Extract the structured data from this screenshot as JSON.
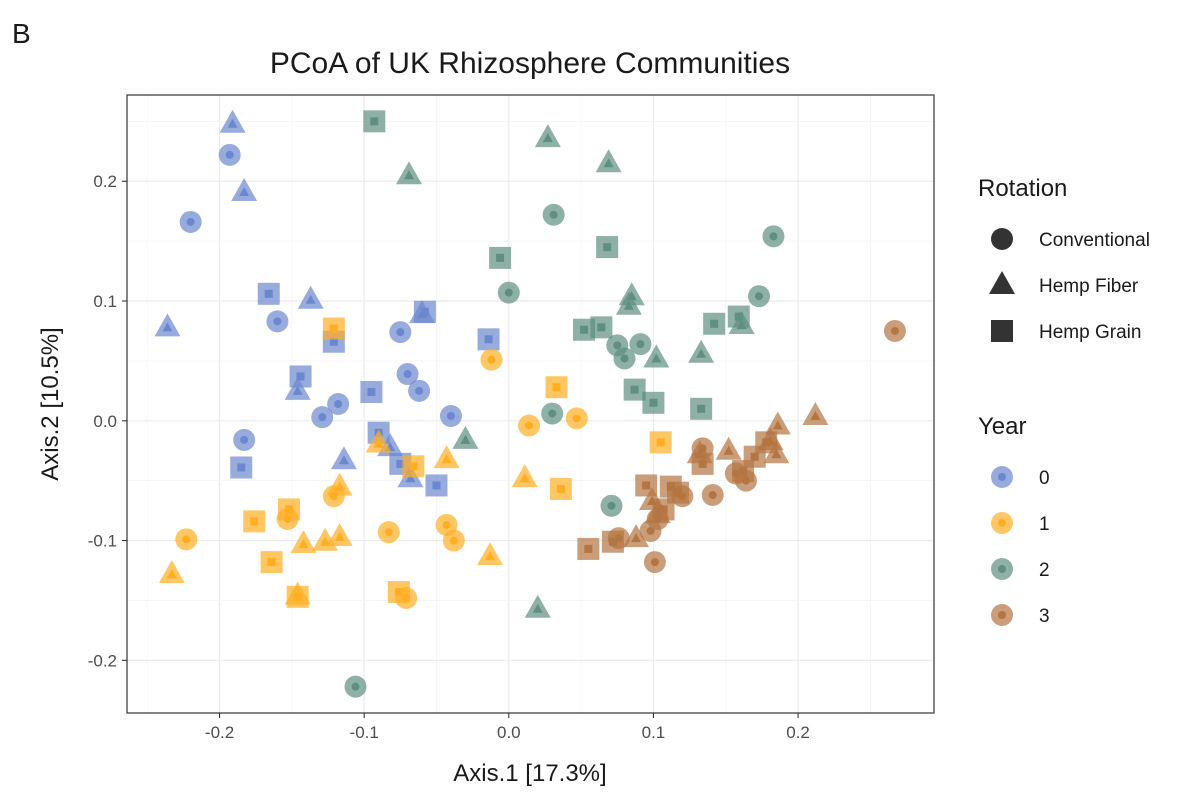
{
  "panel_tag": "B",
  "colors": {
    "0": "#6b87cf",
    "1": "#ffae22",
    "2": "#5e8f80",
    "3": "#b37541"
  },
  "legend": {
    "shape_title": "Rotation",
    "shape_items": [
      {
        "label": "Conventional",
        "shape": "circle"
      },
      {
        "label": "Hemp Fiber",
        "shape": "triangle"
      },
      {
        "label": "Hemp Grain",
        "shape": "square"
      }
    ],
    "color_title": "Year",
    "color_items": [
      {
        "label": "0",
        "year": "0"
      },
      {
        "label": "1",
        "year": "1"
      },
      {
        "label": "2",
        "year": "2"
      },
      {
        "label": "3",
        "year": "3"
      }
    ]
  },
  "chart_data": {
    "type": "scatter",
    "title": "PCoA of UK Rhizosphere Communities",
    "xlabel": "Axis.1   [17.3%]",
    "ylabel": "Axis.2   [10.5%]",
    "xlim": [
      -0.264,
      0.294
    ],
    "ylim": [
      -0.244,
      0.272
    ],
    "xticks": [
      -0.2,
      -0.1,
      0.0,
      0.1,
      0.2
    ],
    "xtick_labels": [
      "-0.2",
      "-0.1",
      "0.0",
      "0.1",
      "0.2"
    ],
    "yticks": [
      -0.2,
      -0.1,
      0.0,
      0.1,
      0.2
    ],
    "ytick_labels": [
      "-0.2",
      "-0.1",
      "0.0",
      "0.1",
      "0.2"
    ],
    "grid": true,
    "legend_position": "right",
    "points": [
      {
        "x": -0.193,
        "y": 0.222,
        "shape": "circle",
        "year": "0"
      },
      {
        "x": -0.22,
        "y": 0.166,
        "shape": "circle",
        "year": "0"
      },
      {
        "x": -0.16,
        "y": 0.083,
        "shape": "circle",
        "year": "0"
      },
      {
        "x": -0.075,
        "y": 0.074,
        "shape": "circle",
        "year": "0"
      },
      {
        "x": -0.07,
        "y": 0.039,
        "shape": "circle",
        "year": "0"
      },
      {
        "x": -0.062,
        "y": 0.025,
        "shape": "circle",
        "year": "0"
      },
      {
        "x": -0.04,
        "y": 0.004,
        "shape": "circle",
        "year": "0"
      },
      {
        "x": -0.118,
        "y": 0.014,
        "shape": "circle",
        "year": "0"
      },
      {
        "x": -0.129,
        "y": 0.003,
        "shape": "circle",
        "year": "0"
      },
      {
        "x": -0.183,
        "y": -0.016,
        "shape": "circle",
        "year": "0"
      },
      {
        "x": -0.191,
        "y": 0.248,
        "shape": "triangle",
        "year": "0"
      },
      {
        "x": -0.183,
        "y": 0.191,
        "shape": "triangle",
        "year": "0"
      },
      {
        "x": -0.236,
        "y": 0.078,
        "shape": "triangle",
        "year": "0"
      },
      {
        "x": -0.137,
        "y": 0.101,
        "shape": "triangle",
        "year": "0"
      },
      {
        "x": -0.146,
        "y": 0.025,
        "shape": "triangle",
        "year": "0"
      },
      {
        "x": -0.114,
        "y": -0.033,
        "shape": "triangle",
        "year": "0"
      },
      {
        "x": -0.082,
        "y": -0.022,
        "shape": "triangle",
        "year": "0"
      },
      {
        "x": -0.068,
        "y": -0.048,
        "shape": "triangle",
        "year": "0"
      },
      {
        "x": -0.06,
        "y": 0.089,
        "shape": "triangle",
        "year": "0"
      },
      {
        "x": -0.166,
        "y": 0.106,
        "shape": "square",
        "year": "0"
      },
      {
        "x": -0.121,
        "y": 0.066,
        "shape": "square",
        "year": "0"
      },
      {
        "x": -0.144,
        "y": 0.037,
        "shape": "square",
        "year": "0"
      },
      {
        "x": -0.095,
        "y": 0.024,
        "shape": "square",
        "year": "0"
      },
      {
        "x": -0.058,
        "y": 0.091,
        "shape": "square",
        "year": "0"
      },
      {
        "x": -0.014,
        "y": 0.068,
        "shape": "square",
        "year": "0"
      },
      {
        "x": -0.185,
        "y": -0.039,
        "shape": "square",
        "year": "0"
      },
      {
        "x": -0.09,
        "y": -0.01,
        "shape": "square",
        "year": "0"
      },
      {
        "x": -0.075,
        "y": -0.036,
        "shape": "square",
        "year": "0"
      },
      {
        "x": -0.05,
        "y": -0.054,
        "shape": "square",
        "year": "0"
      },
      {
        "x": -0.012,
        "y": 0.051,
        "shape": "circle",
        "year": "1"
      },
      {
        "x": 0.014,
        "y": -0.004,
        "shape": "circle",
        "year": "1"
      },
      {
        "x": 0.047,
        "y": 0.002,
        "shape": "circle",
        "year": "1"
      },
      {
        "x": -0.223,
        "y": -0.099,
        "shape": "circle",
        "year": "1"
      },
      {
        "x": -0.153,
        "y": -0.082,
        "shape": "circle",
        "year": "1"
      },
      {
        "x": -0.121,
        "y": -0.063,
        "shape": "circle",
        "year": "1"
      },
      {
        "x": -0.083,
        "y": -0.093,
        "shape": "circle",
        "year": "1"
      },
      {
        "x": -0.043,
        "y": -0.087,
        "shape": "circle",
        "year": "1"
      },
      {
        "x": -0.038,
        "y": -0.1,
        "shape": "circle",
        "year": "1"
      },
      {
        "x": -0.071,
        "y": -0.148,
        "shape": "circle",
        "year": "1"
      },
      {
        "x": -0.233,
        "y": -0.128,
        "shape": "triangle",
        "year": "1"
      },
      {
        "x": -0.146,
        "y": -0.146,
        "shape": "triangle",
        "year": "1"
      },
      {
        "x": -0.142,
        "y": -0.103,
        "shape": "triangle",
        "year": "1"
      },
      {
        "x": -0.127,
        "y": -0.101,
        "shape": "triangle",
        "year": "1"
      },
      {
        "x": -0.117,
        "y": -0.097,
        "shape": "triangle",
        "year": "1"
      },
      {
        "x": -0.117,
        "y": -0.055,
        "shape": "triangle",
        "year": "1"
      },
      {
        "x": -0.09,
        "y": -0.019,
        "shape": "triangle",
        "year": "1"
      },
      {
        "x": -0.043,
        "y": -0.032,
        "shape": "triangle",
        "year": "1"
      },
      {
        "x": -0.013,
        "y": -0.113,
        "shape": "triangle",
        "year": "1"
      },
      {
        "x": 0.011,
        "y": -0.048,
        "shape": "triangle",
        "year": "1"
      },
      {
        "x": -0.121,
        "y": 0.077,
        "shape": "square",
        "year": "1"
      },
      {
        "x": 0.033,
        "y": 0.028,
        "shape": "square",
        "year": "1"
      },
      {
        "x": 0.105,
        "y": -0.018,
        "shape": "square",
        "year": "1"
      },
      {
        "x": -0.066,
        "y": -0.038,
        "shape": "square",
        "year": "1"
      },
      {
        "x": 0.036,
        "y": -0.057,
        "shape": "square",
        "year": "1"
      },
      {
        "x": -0.176,
        "y": -0.084,
        "shape": "square",
        "year": "1"
      },
      {
        "x": -0.152,
        "y": -0.074,
        "shape": "square",
        "year": "1"
      },
      {
        "x": -0.164,
        "y": -0.118,
        "shape": "square",
        "year": "1"
      },
      {
        "x": -0.146,
        "y": -0.147,
        "shape": "square",
        "year": "1"
      },
      {
        "x": -0.076,
        "y": -0.143,
        "shape": "square",
        "year": "1"
      },
      {
        "x": 0.031,
        "y": 0.172,
        "shape": "circle",
        "year": "2"
      },
      {
        "x": 0.183,
        "y": 0.154,
        "shape": "circle",
        "year": "2"
      },
      {
        "x": 0.0,
        "y": 0.107,
        "shape": "circle",
        "year": "2"
      },
      {
        "x": 0.173,
        "y": 0.104,
        "shape": "circle",
        "year": "2"
      },
      {
        "x": 0.075,
        "y": 0.063,
        "shape": "circle",
        "year": "2"
      },
      {
        "x": 0.091,
        "y": 0.064,
        "shape": "circle",
        "year": "2"
      },
      {
        "x": 0.08,
        "y": 0.052,
        "shape": "circle",
        "year": "2"
      },
      {
        "x": 0.03,
        "y": 0.006,
        "shape": "circle",
        "year": "2"
      },
      {
        "x": 0.071,
        "y": -0.071,
        "shape": "circle",
        "year": "2"
      },
      {
        "x": -0.106,
        "y": -0.222,
        "shape": "circle",
        "year": "2"
      },
      {
        "x": 0.027,
        "y": 0.236,
        "shape": "triangle",
        "year": "2"
      },
      {
        "x": 0.069,
        "y": 0.215,
        "shape": "triangle",
        "year": "2"
      },
      {
        "x": -0.069,
        "y": 0.205,
        "shape": "triangle",
        "year": "2"
      },
      {
        "x": 0.085,
        "y": 0.104,
        "shape": "triangle",
        "year": "2"
      },
      {
        "x": 0.083,
        "y": 0.096,
        "shape": "triangle",
        "year": "2"
      },
      {
        "x": 0.161,
        "y": 0.08,
        "shape": "triangle",
        "year": "2"
      },
      {
        "x": 0.133,
        "y": 0.056,
        "shape": "triangle",
        "year": "2"
      },
      {
        "x": 0.102,
        "y": 0.052,
        "shape": "triangle",
        "year": "2"
      },
      {
        "x": -0.03,
        "y": -0.016,
        "shape": "triangle",
        "year": "2"
      },
      {
        "x": 0.02,
        "y": -0.157,
        "shape": "triangle",
        "year": "2"
      },
      {
        "x": -0.093,
        "y": 0.25,
        "shape": "square",
        "year": "2"
      },
      {
        "x": 0.068,
        "y": 0.145,
        "shape": "square",
        "year": "2"
      },
      {
        "x": -0.006,
        "y": 0.136,
        "shape": "square",
        "year": "2"
      },
      {
        "x": 0.142,
        "y": 0.081,
        "shape": "square",
        "year": "2"
      },
      {
        "x": 0.159,
        "y": 0.087,
        "shape": "square",
        "year": "2"
      },
      {
        "x": 0.052,
        "y": 0.076,
        "shape": "square",
        "year": "2"
      },
      {
        "x": 0.064,
        "y": 0.078,
        "shape": "square",
        "year": "2"
      },
      {
        "x": 0.087,
        "y": 0.026,
        "shape": "square",
        "year": "2"
      },
      {
        "x": 0.1,
        "y": 0.015,
        "shape": "square",
        "year": "2"
      },
      {
        "x": 0.133,
        "y": 0.01,
        "shape": "square",
        "year": "2"
      },
      {
        "x": 0.267,
        "y": 0.075,
        "shape": "circle",
        "year": "3"
      },
      {
        "x": 0.134,
        "y": -0.023,
        "shape": "circle",
        "year": "3"
      },
      {
        "x": 0.157,
        "y": -0.044,
        "shape": "circle",
        "year": "3"
      },
      {
        "x": 0.164,
        "y": -0.05,
        "shape": "circle",
        "year": "3"
      },
      {
        "x": 0.141,
        "y": -0.062,
        "shape": "circle",
        "year": "3"
      },
      {
        "x": 0.12,
        "y": -0.063,
        "shape": "circle",
        "year": "3"
      },
      {
        "x": 0.103,
        "y": -0.082,
        "shape": "circle",
        "year": "3"
      },
      {
        "x": 0.098,
        "y": -0.092,
        "shape": "circle",
        "year": "3"
      },
      {
        "x": 0.076,
        "y": -0.098,
        "shape": "circle",
        "year": "3"
      },
      {
        "x": 0.101,
        "y": -0.118,
        "shape": "circle",
        "year": "3"
      },
      {
        "x": 0.212,
        "y": 0.004,
        "shape": "triangle",
        "year": "3"
      },
      {
        "x": 0.186,
        "y": -0.004,
        "shape": "triangle",
        "year": "3"
      },
      {
        "x": 0.181,
        "y": -0.017,
        "shape": "triangle",
        "year": "3"
      },
      {
        "x": 0.185,
        "y": -0.028,
        "shape": "triangle",
        "year": "3"
      },
      {
        "x": 0.152,
        "y": -0.025,
        "shape": "triangle",
        "year": "3"
      },
      {
        "x": 0.132,
        "y": -0.028,
        "shape": "triangle",
        "year": "3"
      },
      {
        "x": 0.099,
        "y": -0.067,
        "shape": "triangle",
        "year": "3"
      },
      {
        "x": 0.103,
        "y": -0.078,
        "shape": "triangle",
        "year": "3"
      },
      {
        "x": 0.088,
        "y": -0.098,
        "shape": "triangle",
        "year": "3"
      },
      {
        "x": 0.178,
        "y": -0.018,
        "shape": "square",
        "year": "3"
      },
      {
        "x": 0.17,
        "y": -0.03,
        "shape": "square",
        "year": "3"
      },
      {
        "x": 0.162,
        "y": -0.042,
        "shape": "square",
        "year": "3"
      },
      {
        "x": 0.134,
        "y": -0.036,
        "shape": "square",
        "year": "3"
      },
      {
        "x": 0.095,
        "y": -0.054,
        "shape": "square",
        "year": "3"
      },
      {
        "x": 0.112,
        "y": -0.055,
        "shape": "square",
        "year": "3"
      },
      {
        "x": 0.117,
        "y": -0.06,
        "shape": "square",
        "year": "3"
      },
      {
        "x": 0.107,
        "y": -0.074,
        "shape": "square",
        "year": "3"
      },
      {
        "x": 0.072,
        "y": -0.101,
        "shape": "square",
        "year": "3"
      },
      {
        "x": 0.055,
        "y": -0.107,
        "shape": "square",
        "year": "3"
      }
    ]
  }
}
